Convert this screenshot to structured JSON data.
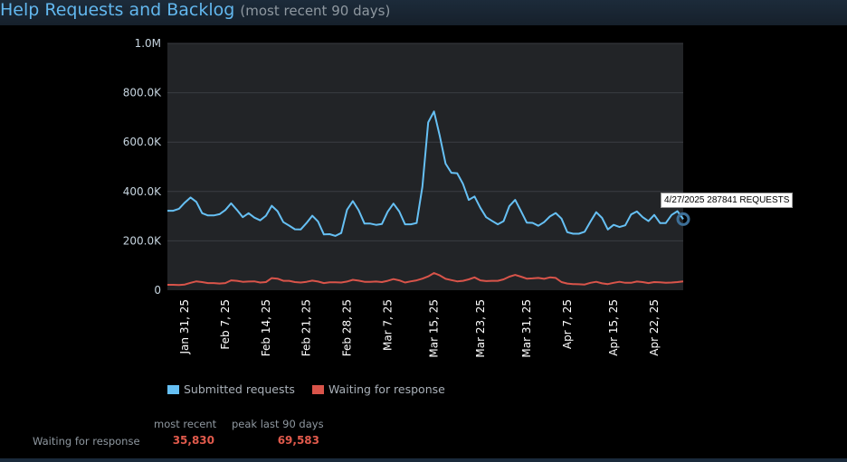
{
  "header": {
    "title": "Help Requests and Backlog",
    "subtitle": "(most recent 90 days)"
  },
  "colors": {
    "submitted": "#66c0f4",
    "waiting": "#d9544a",
    "plot_bg": "#222427",
    "grid": "#3a3d42"
  },
  "chart_data": {
    "type": "line",
    "title": "",
    "xlabel": "",
    "ylabel": "",
    "ylim": [
      0,
      1000000
    ],
    "y_ticks": [
      {
        "value": 1000000,
        "label": "1.0M"
      },
      {
        "value": 800000,
        "label": "800.0K"
      },
      {
        "value": 600000,
        "label": "600.0K"
      },
      {
        "value": 400000,
        "label": "400.0K"
      },
      {
        "value": 200000,
        "label": "200.0K"
      },
      {
        "value": 0,
        "label": "0"
      }
    ],
    "x_tick_labels": [
      "Jan 31, 25",
      "Feb 7, 25",
      "Feb 14, 25",
      "Feb 21, 25",
      "Feb 28, 25",
      "Mar 7, 25",
      "Mar 15, 25",
      "Mar 23, 25",
      "Mar 31, 25",
      "Apr 7, 25",
      "Apr 15, 25",
      "Apr 22, 25"
    ],
    "x_tick_days": [
      3,
      10,
      17,
      24,
      31,
      38,
      46,
      54,
      62,
      69,
      77,
      84
    ],
    "x_range_days": [
      0,
      89
    ],
    "grid": true,
    "legend_position": "bottom",
    "series": [
      {
        "name": "Submitted requests",
        "values": [
          322000,
          322000,
          330000,
          355000,
          376000,
          358000,
          312000,
          303000,
          303000,
          308000,
          325000,
          352000,
          325000,
          296000,
          312000,
          294000,
          283000,
          302000,
          342000,
          320000,
          276000,
          262000,
          247000,
          246000,
          272000,
          302000,
          278000,
          226000,
          227000,
          220000,
          232000,
          326000,
          361000,
          324000,
          270000,
          270000,
          265000,
          268000,
          318000,
          351000,
          319000,
          267000,
          267000,
          272000,
          420000,
          680000,
          724000,
          625000,
          513000,
          476000,
          474000,
          431000,
          366000,
          380000,
          334000,
          296000,
          281000,
          267000,
          280000,
          341000,
          366000,
          321000,
          274000,
          273000,
          261000,
          276000,
          299000,
          313000,
          290000,
          235000,
          229000,
          229000,
          237000,
          278000,
          316000,
          293000,
          246000,
          265000,
          256000,
          263000,
          307000,
          319000,
          296000,
          280000,
          305000,
          272000,
          272000,
          305000,
          320000,
          287841
        ]
      },
      {
        "name": "Waiting for response",
        "values": [
          22000,
          22000,
          21000,
          23000,
          30000,
          36000,
          33000,
          29000,
          29000,
          27000,
          29000,
          40000,
          38000,
          34000,
          35000,
          36000,
          31000,
          33000,
          49000,
          47000,
          38000,
          38000,
          33000,
          31000,
          34000,
          39000,
          35000,
          29000,
          32000,
          32000,
          31000,
          35000,
          42000,
          39000,
          34000,
          34000,
          35000,
          33000,
          38000,
          45000,
          40000,
          31000,
          36000,
          40000,
          47000,
          56000,
          69583,
          60000,
          46000,
          41000,
          36000,
          38000,
          44000,
          52000,
          40000,
          37000,
          38000,
          38000,
          44000,
          55000,
          62000,
          55000,
          47000,
          48000,
          50000,
          46000,
          52000,
          50000,
          33000,
          27000,
          25000,
          24000,
          23000,
          30000,
          34000,
          28000,
          25000,
          30000,
          34000,
          30000,
          30000,
          35000,
          33000,
          29000,
          33000,
          32000,
          30000,
          31000,
          33000,
          35830
        ]
      }
    ]
  },
  "tooltip": {
    "text": "4/27/2025 287841 REQUESTS"
  },
  "legend": {
    "submitted_label": "Submitted requests",
    "waiting_label": "Waiting for response"
  },
  "stats": {
    "col_recent": "most recent",
    "col_peak": "peak last 90 days",
    "row_label": "Waiting for response",
    "recent_value": "35,830",
    "peak_value": "69,583"
  }
}
